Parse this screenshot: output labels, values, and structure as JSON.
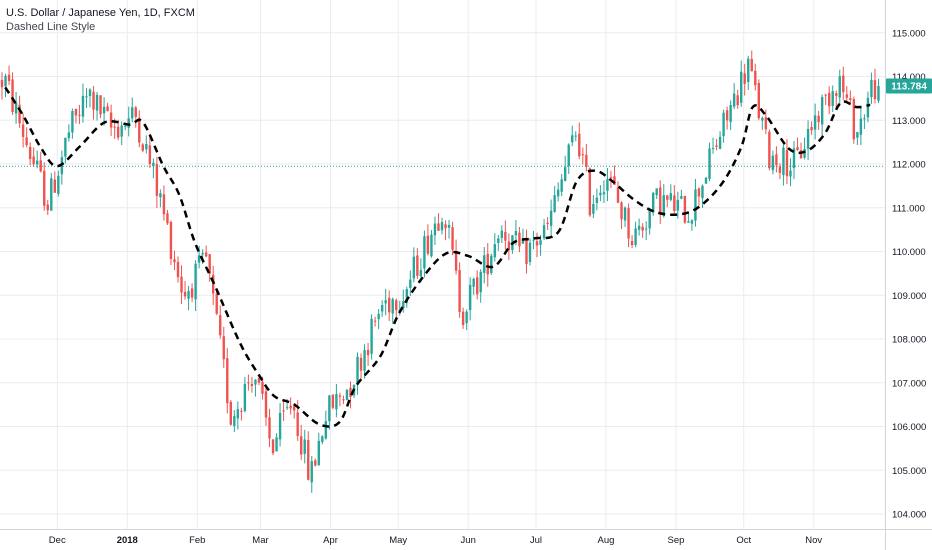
{
  "legend": {
    "title": "U.S. Dollar / Japanese Yen, 1D, FXCM",
    "subtitle": "Dashed Line Style"
  },
  "price_label": "113.784",
  "colors": {
    "up": "#26a69a",
    "down": "#ef5350",
    "ma": "#000000",
    "grid": "#e9ecf2",
    "price_line": "#26a69a",
    "axis_text": "#131722"
  },
  "chart_data": {
    "type": "candlestick",
    "ylim": [
      103.6,
      115.5
    ],
    "y_ticks": [
      "104.000",
      "105.000",
      "106.000",
      "107.000",
      "108.000",
      "109.000",
      "110.000",
      "111.000",
      "112.000",
      "113.000",
      "114.000",
      "115.000"
    ],
    "x_ticks": [
      "Dec",
      "2018",
      "Feb",
      "Mar",
      "Apr",
      "May",
      "Jun",
      "Jul",
      "Aug",
      "Sep",
      "Oct",
      "Nov"
    ],
    "last_price": 113.784,
    "reference_level": 111.95,
    "price_path": [
      {
        "date": "Nov 8",
        "price": 113.9
      },
      {
        "date": "Nov 20",
        "price": 112.1
      },
      {
        "date": "Nov 27",
        "price": 111.1
      },
      {
        "date": "Dec 6",
        "price": 112.7
      },
      {
        "date": "Dec 15",
        "price": 113.6
      },
      {
        "date": "Dec 25",
        "price": 112.8
      },
      {
        "date": "Jan 5",
        "price": 113.1
      },
      {
        "date": "Jan 15",
        "price": 111.3
      },
      {
        "date": "Jan 26",
        "price": 109.0
      },
      {
        "date": "Feb 5",
        "price": 109.8
      },
      {
        "date": "Feb 16",
        "price": 106.2
      },
      {
        "date": "Feb 26",
        "price": 107.3
      },
      {
        "date": "Mar 6",
        "price": 105.5
      },
      {
        "date": "Mar 15",
        "price": 106.6
      },
      {
        "date": "Mar 23",
        "price": 104.8
      },
      {
        "date": "Mar 30",
        "price": 106.3
      },
      {
        "date": "Apr 10",
        "price": 107.0
      },
      {
        "date": "Apr 24",
        "price": 108.8
      },
      {
        "date": "May 4",
        "price": 109.1
      },
      {
        "date": "May 21",
        "price": 111.1
      },
      {
        "date": "May 29",
        "price": 108.6
      },
      {
        "date": "Jun 8",
        "price": 109.6
      },
      {
        "date": "Jun 15",
        "price": 110.6
      },
      {
        "date": "Jun 25",
        "price": 109.9
      },
      {
        "date": "Jul 6",
        "price": 110.5
      },
      {
        "date": "Jul 19",
        "price": 112.8
      },
      {
        "date": "Jul 25",
        "price": 111.1
      },
      {
        "date": "Aug 1",
        "price": 111.8
      },
      {
        "date": "Aug 13",
        "price": 110.3
      },
      {
        "date": "Aug 24",
        "price": 111.2
      },
      {
        "date": "Sep 7",
        "price": 110.9
      },
      {
        "date": "Sep 20",
        "price": 112.6
      },
      {
        "date": "Oct 3",
        "price": 114.3
      },
      {
        "date": "Oct 12",
        "price": 112.2
      },
      {
        "date": "Oct 24",
        "price": 112.0
      },
      {
        "date": "Oct 31",
        "price": 112.9
      },
      {
        "date": "Nov 12",
        "price": 114.0
      },
      {
        "date": "Nov 20",
        "price": 112.7
      },
      {
        "date": "Nov 27",
        "price": 113.8
      }
    ],
    "moving_average": [
      {
        "date": "Nov 8",
        "value": 113.75
      },
      {
        "date": "Nov 16",
        "value": 113.1
      },
      {
        "date": "Nov 24",
        "value": 112.35
      },
      {
        "date": "Dec 1",
        "value": 111.95
      },
      {
        "date": "Dec 11",
        "value": 112.4
      },
      {
        "date": "Dec 22",
        "value": 112.95
      },
      {
        "date": "Jan 2",
        "value": 112.9
      },
      {
        "date": "Jan 8",
        "value": 112.95
      },
      {
        "date": "Jan 17",
        "value": 111.95
      },
      {
        "date": "Jan 24",
        "value": 111.3
      },
      {
        "date": "Jan 31",
        "value": 110.2
      },
      {
        "date": "Feb 9",
        "value": 109.2
      },
      {
        "date": "Feb 20",
        "value": 107.9
      },
      {
        "date": "Feb 28",
        "value": 107.2
      },
      {
        "date": "Mar 7",
        "value": 106.7
      },
      {
        "date": "Mar 16",
        "value": 106.5
      },
      {
        "date": "Mar 27",
        "value": 106.05
      },
      {
        "date": "Apr 5",
        "value": 106.1
      },
      {
        "date": "Apr 12",
        "value": 106.9
      },
      {
        "date": "Apr 23",
        "value": 107.6
      },
      {
        "date": "May 1",
        "value": 108.55
      },
      {
        "date": "May 11",
        "value": 109.35
      },
      {
        "date": "May 22",
        "value": 109.95
      },
      {
        "date": "Jun 1",
        "value": 109.9
      },
      {
        "date": "Jun 12",
        "value": 109.65
      },
      {
        "date": "Jun 21",
        "value": 110.2
      },
      {
        "date": "Jun 30",
        "value": 110.3
      },
      {
        "date": "Jul 11",
        "value": 110.45
      },
      {
        "date": "Jul 19",
        "value": 111.6
      },
      {
        "date": "Jul 27",
        "value": 111.85
      },
      {
        "date": "Aug 4",
        "value": 111.6
      },
      {
        "date": "Aug 13",
        "value": 111.2
      },
      {
        "date": "Aug 23",
        "value": 110.9
      },
      {
        "date": "Sep 3",
        "value": 110.85
      },
      {
        "date": "Sep 12",
        "value": 111.05
      },
      {
        "date": "Sep 22",
        "value": 111.6
      },
      {
        "date": "Sep 30",
        "value": 112.4
      },
      {
        "date": "Oct 5",
        "value": 113.3
      },
      {
        "date": "Oct 11",
        "value": 113.1
      },
      {
        "date": "Oct 21",
        "value": 112.35
      },
      {
        "date": "Oct 29",
        "value": 112.3
      },
      {
        "date": "Nov 6",
        "value": 112.7
      },
      {
        "date": "Nov 13",
        "value": 113.4
      },
      {
        "date": "Nov 20",
        "value": 113.3
      },
      {
        "date": "Nov 26",
        "value": 113.35
      }
    ]
  }
}
